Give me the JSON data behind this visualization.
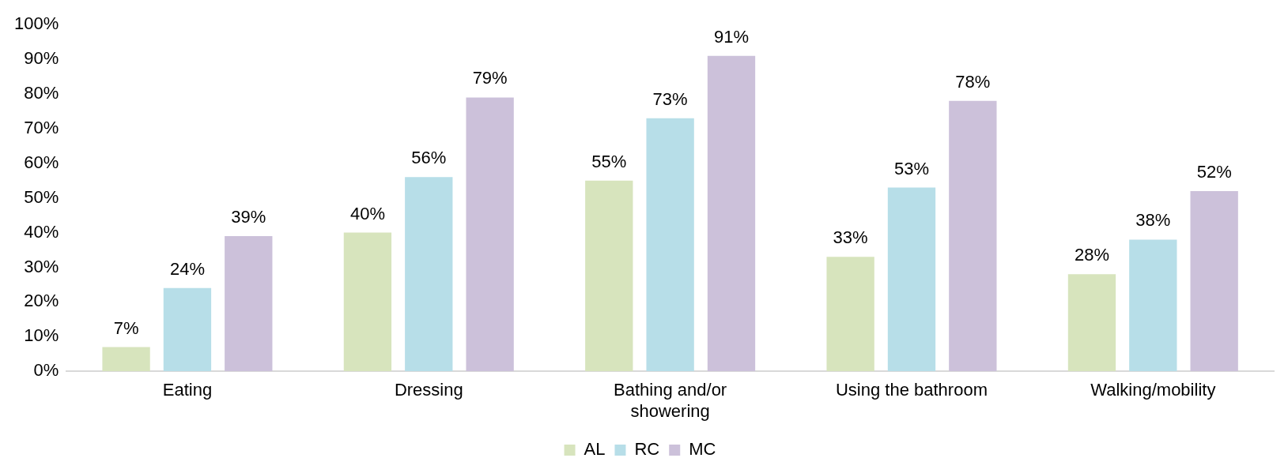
{
  "chart_data": {
    "type": "bar",
    "categories": [
      "Eating",
      "Dressing",
      "Bathing and/or showering",
      "Using the bathroom",
      "Walking/mobility"
    ],
    "series": [
      {
        "name": "AL",
        "color": "#d7e4bd",
        "values": [
          7,
          40,
          55,
          33,
          28
        ],
        "value_labels": [
          "7%",
          "40%",
          "55%",
          "33%",
          "28%"
        ]
      },
      {
        "name": "RC",
        "color": "#b7dee8",
        "values": [
          24,
          56,
          73,
          53,
          38
        ],
        "value_labels": [
          "24%",
          "56%",
          "73%",
          "53%",
          "38%"
        ]
      },
      {
        "name": "MC",
        "color": "#ccc1da",
        "values": [
          39,
          79,
          91,
          78,
          52
        ],
        "value_labels": [
          "39%",
          "79%",
          "91%",
          "78%",
          "52%"
        ]
      }
    ],
    "ylim": [
      0,
      100
    ],
    "yticks": [
      {
        "value": 0,
        "label": "0%"
      },
      {
        "value": 10,
        "label": "10%"
      },
      {
        "value": 20,
        "label": "20%"
      },
      {
        "value": 30,
        "label": "30%"
      },
      {
        "value": 40,
        "label": "40%"
      },
      {
        "value": 50,
        "label": "50%"
      },
      {
        "value": 60,
        "label": "60%"
      },
      {
        "value": 70,
        "label": "70%"
      },
      {
        "value": 80,
        "label": "80%"
      },
      {
        "value": 90,
        "label": "90%"
      },
      {
        "value": 100,
        "label": "100%"
      }
    ],
    "grid": false,
    "legend": "bottom"
  }
}
